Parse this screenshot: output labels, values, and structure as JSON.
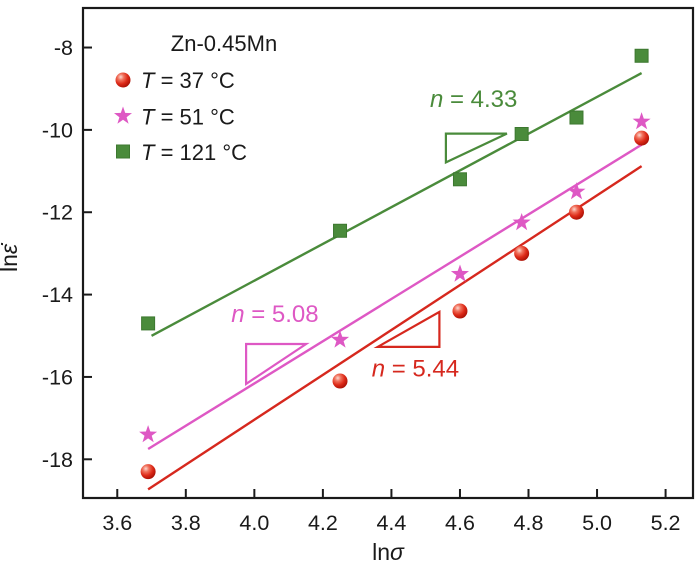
{
  "chart_data": {
    "type": "scatter",
    "title": "Zn-0.45Mn",
    "xlabel": "lnσ",
    "ylabel": "lnε̇",
    "x_ticks": [
      3.6,
      3.8,
      4.0,
      4.2,
      4.4,
      4.6,
      4.8,
      5.0,
      5.2
    ],
    "y_ticks": [
      -8,
      -10,
      -12,
      -14,
      -16,
      -18
    ],
    "xlim": [
      3.5,
      5.28
    ],
    "ylim": [
      -18.94,
      -7.04
    ],
    "grid": false,
    "legend_position": "top-left",
    "x": [
      3.69,
      4.25,
      4.6,
      4.78,
      4.94,
      5.13
    ],
    "series": [
      {
        "id": "t121",
        "label": "T = 121 °C",
        "marker": "square",
        "color": "#4a8b3b",
        "y": [
          -14.7,
          -12.45,
          -11.2,
          -10.1,
          -9.7,
          -8.2
        ],
        "n_label": "n = 4.33",
        "n_label_pos": {
          "x": 4.64,
          "y": -9.45
        },
        "fit_line": {
          "x1": 3.7,
          "y1": -15.0,
          "x2": 5.13,
          "y2": -8.62
        },
        "slope_triangle": [
          [
            4.559,
            -10.09
          ],
          [
            4.737,
            -10.09
          ],
          [
            4.559,
            -10.79
          ]
        ]
      },
      {
        "id": "t51",
        "label": "T = 51 °C",
        "marker": "star",
        "color": "#de58c4",
        "y": [
          -17.4,
          -15.1,
          -13.5,
          -12.25,
          -11.5,
          -9.8
        ],
        "n_label": "n = 5.08",
        "n_label_pos": {
          "x": 4.06,
          "y": -14.67
        },
        "fit_line": {
          "x1": 3.69,
          "y1": -17.75,
          "x2": 5.13,
          "y2": -10.36
        },
        "slope_triangle": [
          [
            3.976,
            -15.2
          ],
          [
            4.151,
            -15.2
          ],
          [
            3.976,
            -16.17
          ]
        ]
      },
      {
        "id": "t37",
        "label": "T = 37 °C",
        "marker": "sphere",
        "color": "#d6281e",
        "y": [
          -18.3,
          -16.1,
          -14.4,
          -13.0,
          -12.0,
          -10.2
        ],
        "n_label": "n = 5.44",
        "n_label_pos": {
          "x": 4.47,
          "y": -15.99
        },
        "fit_line": {
          "x1": 3.69,
          "y1": -18.73,
          "x2": 5.13,
          "y2": -10.88
        },
        "slope_triangle": [
          [
            4.36,
            -15.27
          ],
          [
            4.54,
            -15.27
          ],
          [
            4.54,
            -14.42
          ]
        ]
      }
    ],
    "legend_order": [
      "t37",
      "t51",
      "t121"
    ],
    "colors": {
      "frame": "#1a1a1a",
      "text": "#1a1a1a",
      "background": "#ffffff"
    }
  }
}
